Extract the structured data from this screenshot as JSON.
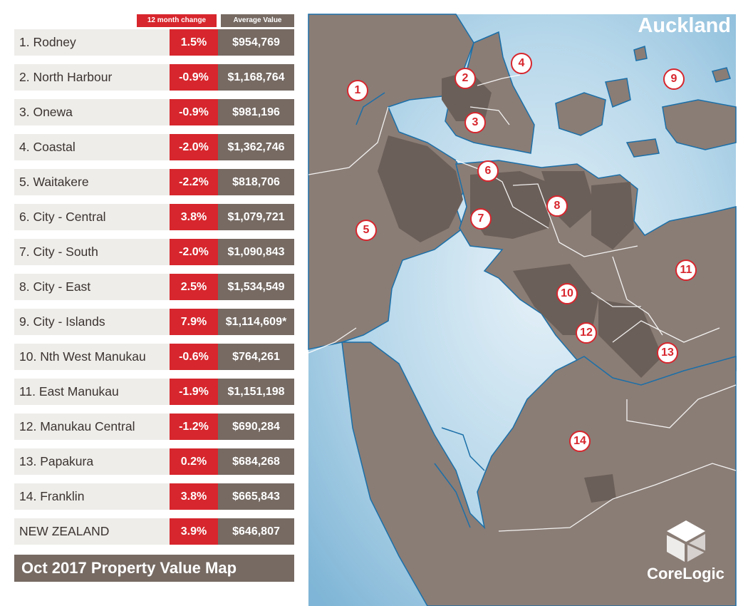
{
  "legend": {
    "change_header": "12 month change",
    "average_header": "Average Value",
    "footer_title": "Oct 2017 Property Value Map"
  },
  "rows": [
    {
      "name": "1. Rodney",
      "change": "1.5%",
      "avg": "$954,769"
    },
    {
      "name": "2. North Harbour",
      "change": "-0.9%",
      "avg": "$1,168,764"
    },
    {
      "name": "3. Onewa",
      "change": "-0.9%",
      "avg": "$981,196"
    },
    {
      "name": "4. Coastal",
      "change": "-2.0%",
      "avg": "$1,362,746"
    },
    {
      "name": "5. Waitakere",
      "change": "-2.2%",
      "avg": "$818,706"
    },
    {
      "name": "6. City - Central",
      "change": "3.8%",
      "avg": "$1,079,721"
    },
    {
      "name": "7. City - South",
      "change": "-2.0%",
      "avg": "$1,090,843"
    },
    {
      "name": "8. City - East",
      "change": "2.5%",
      "avg": "$1,534,549"
    },
    {
      "name": "9. City - Islands",
      "change": "7.9%",
      "avg": "$1,114,609*"
    },
    {
      "name": "10. Nth West Manukau",
      "change": "-0.6%",
      "avg": "$764,261"
    },
    {
      "name": "11. East Manukau",
      "change": "-1.9%",
      "avg": "$1,151,198"
    },
    {
      "name": "12. Manukau Central",
      "change": "-1.2%",
      "avg": "$690,284"
    },
    {
      "name": "13. Papakura",
      "change": "0.2%",
      "avg": "$684,268"
    },
    {
      "name": "14. Franklin",
      "change": "3.8%",
      "avg": "$665,843"
    },
    {
      "name": "NEW ZEALAND",
      "change": "3.9%",
      "avg": "$646,807"
    }
  ],
  "map": {
    "title": "Auckland",
    "badges": [
      "1",
      "2",
      "3",
      "4",
      "5",
      "6",
      "7",
      "8",
      "9",
      "10",
      "11",
      "12",
      "13",
      "14"
    ]
  },
  "brand": {
    "name": "CoreLogic",
    "icon": "cube-logo-icon"
  },
  "colors": {
    "accent_red": "#d7262d",
    "value_grey": "#766a63",
    "land": "#8a7d76",
    "urban": "#6b5f59",
    "water": "#9fcbe3",
    "coast": "#1b6fa8"
  }
}
